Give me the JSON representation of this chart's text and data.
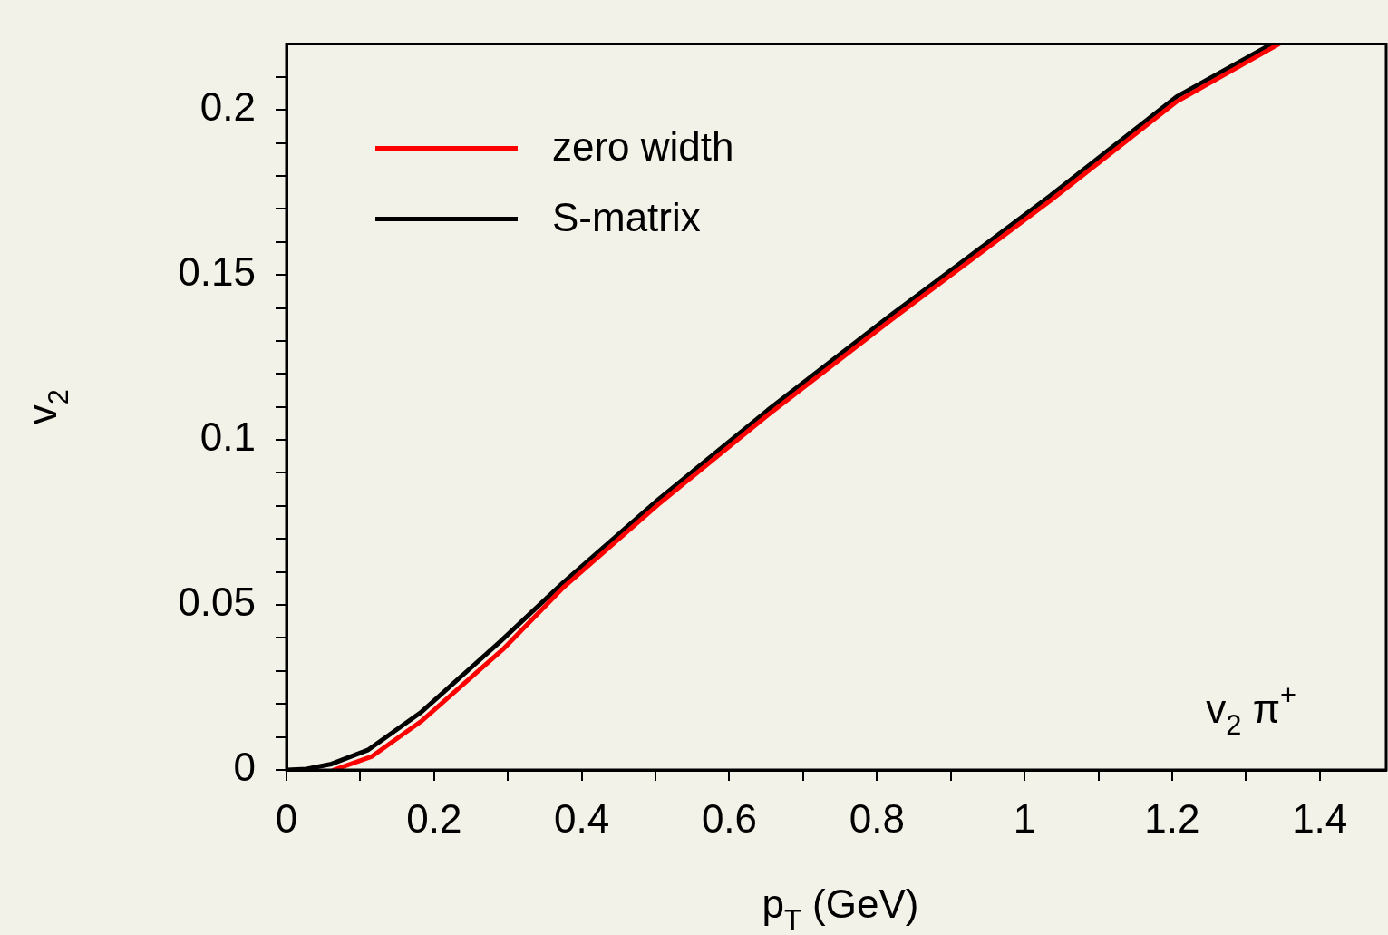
{
  "chart_data": {
    "type": "line",
    "xlabel": "p$_{T}$ (GeV)",
    "ylabel": "v$_{2}$",
    "annotations": [
      "v$_{2}$ π$^{+}$"
    ],
    "xlim": [
      0,
      1.49
    ],
    "ylim": [
      0,
      0.22
    ],
    "xticks": [
      0,
      {
        "value": 0.1,
        "label": null
      },
      0.2,
      {
        "value": 0.3,
        "label": null
      },
      0.4,
      {
        "value": 0.5,
        "label": null
      },
      0.6,
      {
        "value": 0.7,
        "label": null
      },
      0.8,
      {
        "value": 0.9,
        "label": null
      },
      1,
      {
        "value": 1.1,
        "label": null
      },
      1.2,
      {
        "value": 1.3,
        "label": null
      },
      1.4
    ],
    "yticks": [
      0,
      {
        "value": 0.01,
        "label": null
      },
      {
        "value": 0.02,
        "label": null
      },
      {
        "value": 0.03,
        "label": null
      },
      {
        "value": 0.04,
        "label": null
      },
      0.05,
      {
        "value": 0.06,
        "label": null
      },
      {
        "value": 0.07,
        "label": null
      },
      {
        "value": 0.08,
        "label": null
      },
      {
        "value": 0.09,
        "label": null
      },
      0.1,
      {
        "value": 0.11,
        "label": null
      },
      {
        "value": 0.12,
        "label": null
      },
      {
        "value": 0.13,
        "label": null
      },
      {
        "value": 0.14,
        "label": null
      },
      0.15,
      {
        "value": 0.16,
        "label": null
      },
      {
        "value": 0.17,
        "label": null
      },
      {
        "value": 0.18,
        "label": null
      },
      {
        "value": 0.19,
        "label": null
      },
      0.2,
      {
        "value": 0.21,
        "label": null
      }
    ],
    "grid": false,
    "legend": "top left",
    "marker": "none",
    "line_style": "solid",
    "series": [
      {
        "name": "zero width",
        "color": "#ff0000",
        "x": [
          0.064,
          0.115,
          0.184,
          0.293,
          0.376,
          0.504,
          0.652,
          0.82,
          1.035,
          1.206,
          1.345
        ],
        "values": [
          0,
          0.004,
          0.015,
          0.0365,
          0.0555,
          0.0805,
          0.1075,
          0.1365,
          0.1725,
          0.2025,
          0.22
        ]
      },
      {
        "name": "S-matrix",
        "color": "#000000",
        "x": [
          0,
          0.027,
          0.061,
          0.11,
          0.183,
          0.29,
          0.376,
          0.504,
          0.652,
          0.82,
          1.035,
          1.206,
          1.335
        ],
        "values": [
          0,
          0.0003,
          0.0018,
          0.006,
          0.0176,
          0.039,
          0.057,
          0.082,
          0.109,
          0.138,
          0.174,
          0.204,
          0.22
        ]
      }
    ]
  }
}
